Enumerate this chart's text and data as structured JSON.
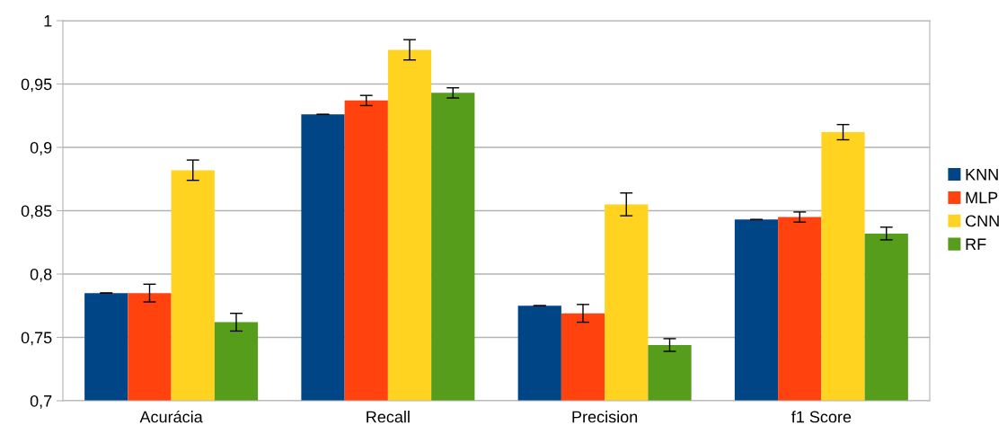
{
  "chart_data": {
    "type": "bar",
    "categories": [
      "Acurácia",
      "Recall",
      "Precision",
      "f1 Score"
    ],
    "series": [
      {
        "name": "KNN",
        "color": "#004586",
        "values": [
          0.785,
          0.926,
          0.775,
          0.843
        ],
        "errors": [
          0,
          0,
          0,
          0
        ]
      },
      {
        "name": "MLP",
        "color": "#ff420e",
        "values": [
          0.785,
          0.937,
          0.769,
          0.845
        ],
        "errors": [
          0.007,
          0.004,
          0.007,
          0.004
        ]
      },
      {
        "name": "CNN",
        "color": "#ffd320",
        "values": [
          0.882,
          0.977,
          0.855,
          0.912
        ],
        "errors": [
          0.008,
          0.008,
          0.009,
          0.006
        ]
      },
      {
        "name": "RF",
        "color": "#579d1c",
        "values": [
          0.762,
          0.943,
          0.744,
          0.832
        ],
        "errors": [
          0.007,
          0.004,
          0.005,
          0.005
        ]
      }
    ],
    "ylim": [
      0.7,
      1
    ],
    "yticks": [
      {
        "value": 0.7,
        "label": "0,7"
      },
      {
        "value": 0.75,
        "label": "0,75"
      },
      {
        "value": 0.8,
        "label": "0,8"
      },
      {
        "value": 0.85,
        "label": "0,85"
      },
      {
        "value": 0.9,
        "label": "0,9"
      },
      {
        "value": 0.95,
        "label": "0,95"
      },
      {
        "value": 1,
        "label": "1"
      }
    ],
    "grid": "y",
    "legend": "right"
  }
}
